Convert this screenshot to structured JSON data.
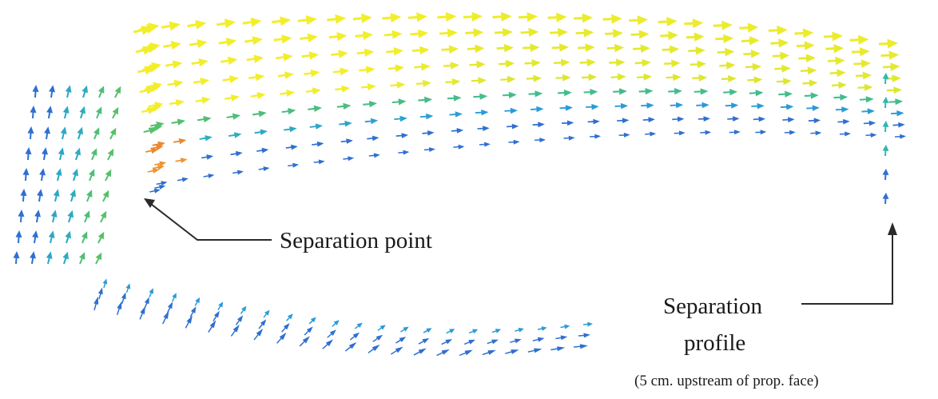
{
  "figure": {
    "annotations": {
      "separation_point": "Separation point",
      "separation_profile_line1": "Separation",
      "separation_profile_line2": "profile",
      "separation_profile_note": "(5 cm. upstream of prop. face)"
    },
    "colors": {
      "background": "#ffffff",
      "leader_line": "#2a2a2a",
      "velocity_scale": [
        "#2f6fd0",
        "#2a9ad8",
        "#2fb7b0",
        "#57c06a",
        "#b7d83a",
        "#f2ee2a",
        "#f0a030",
        "#e03a2a"
      ]
    },
    "visual_elements": [
      "velocity-vector-field",
      "separation-point-leader",
      "separation-profile-leader"
    ]
  }
}
